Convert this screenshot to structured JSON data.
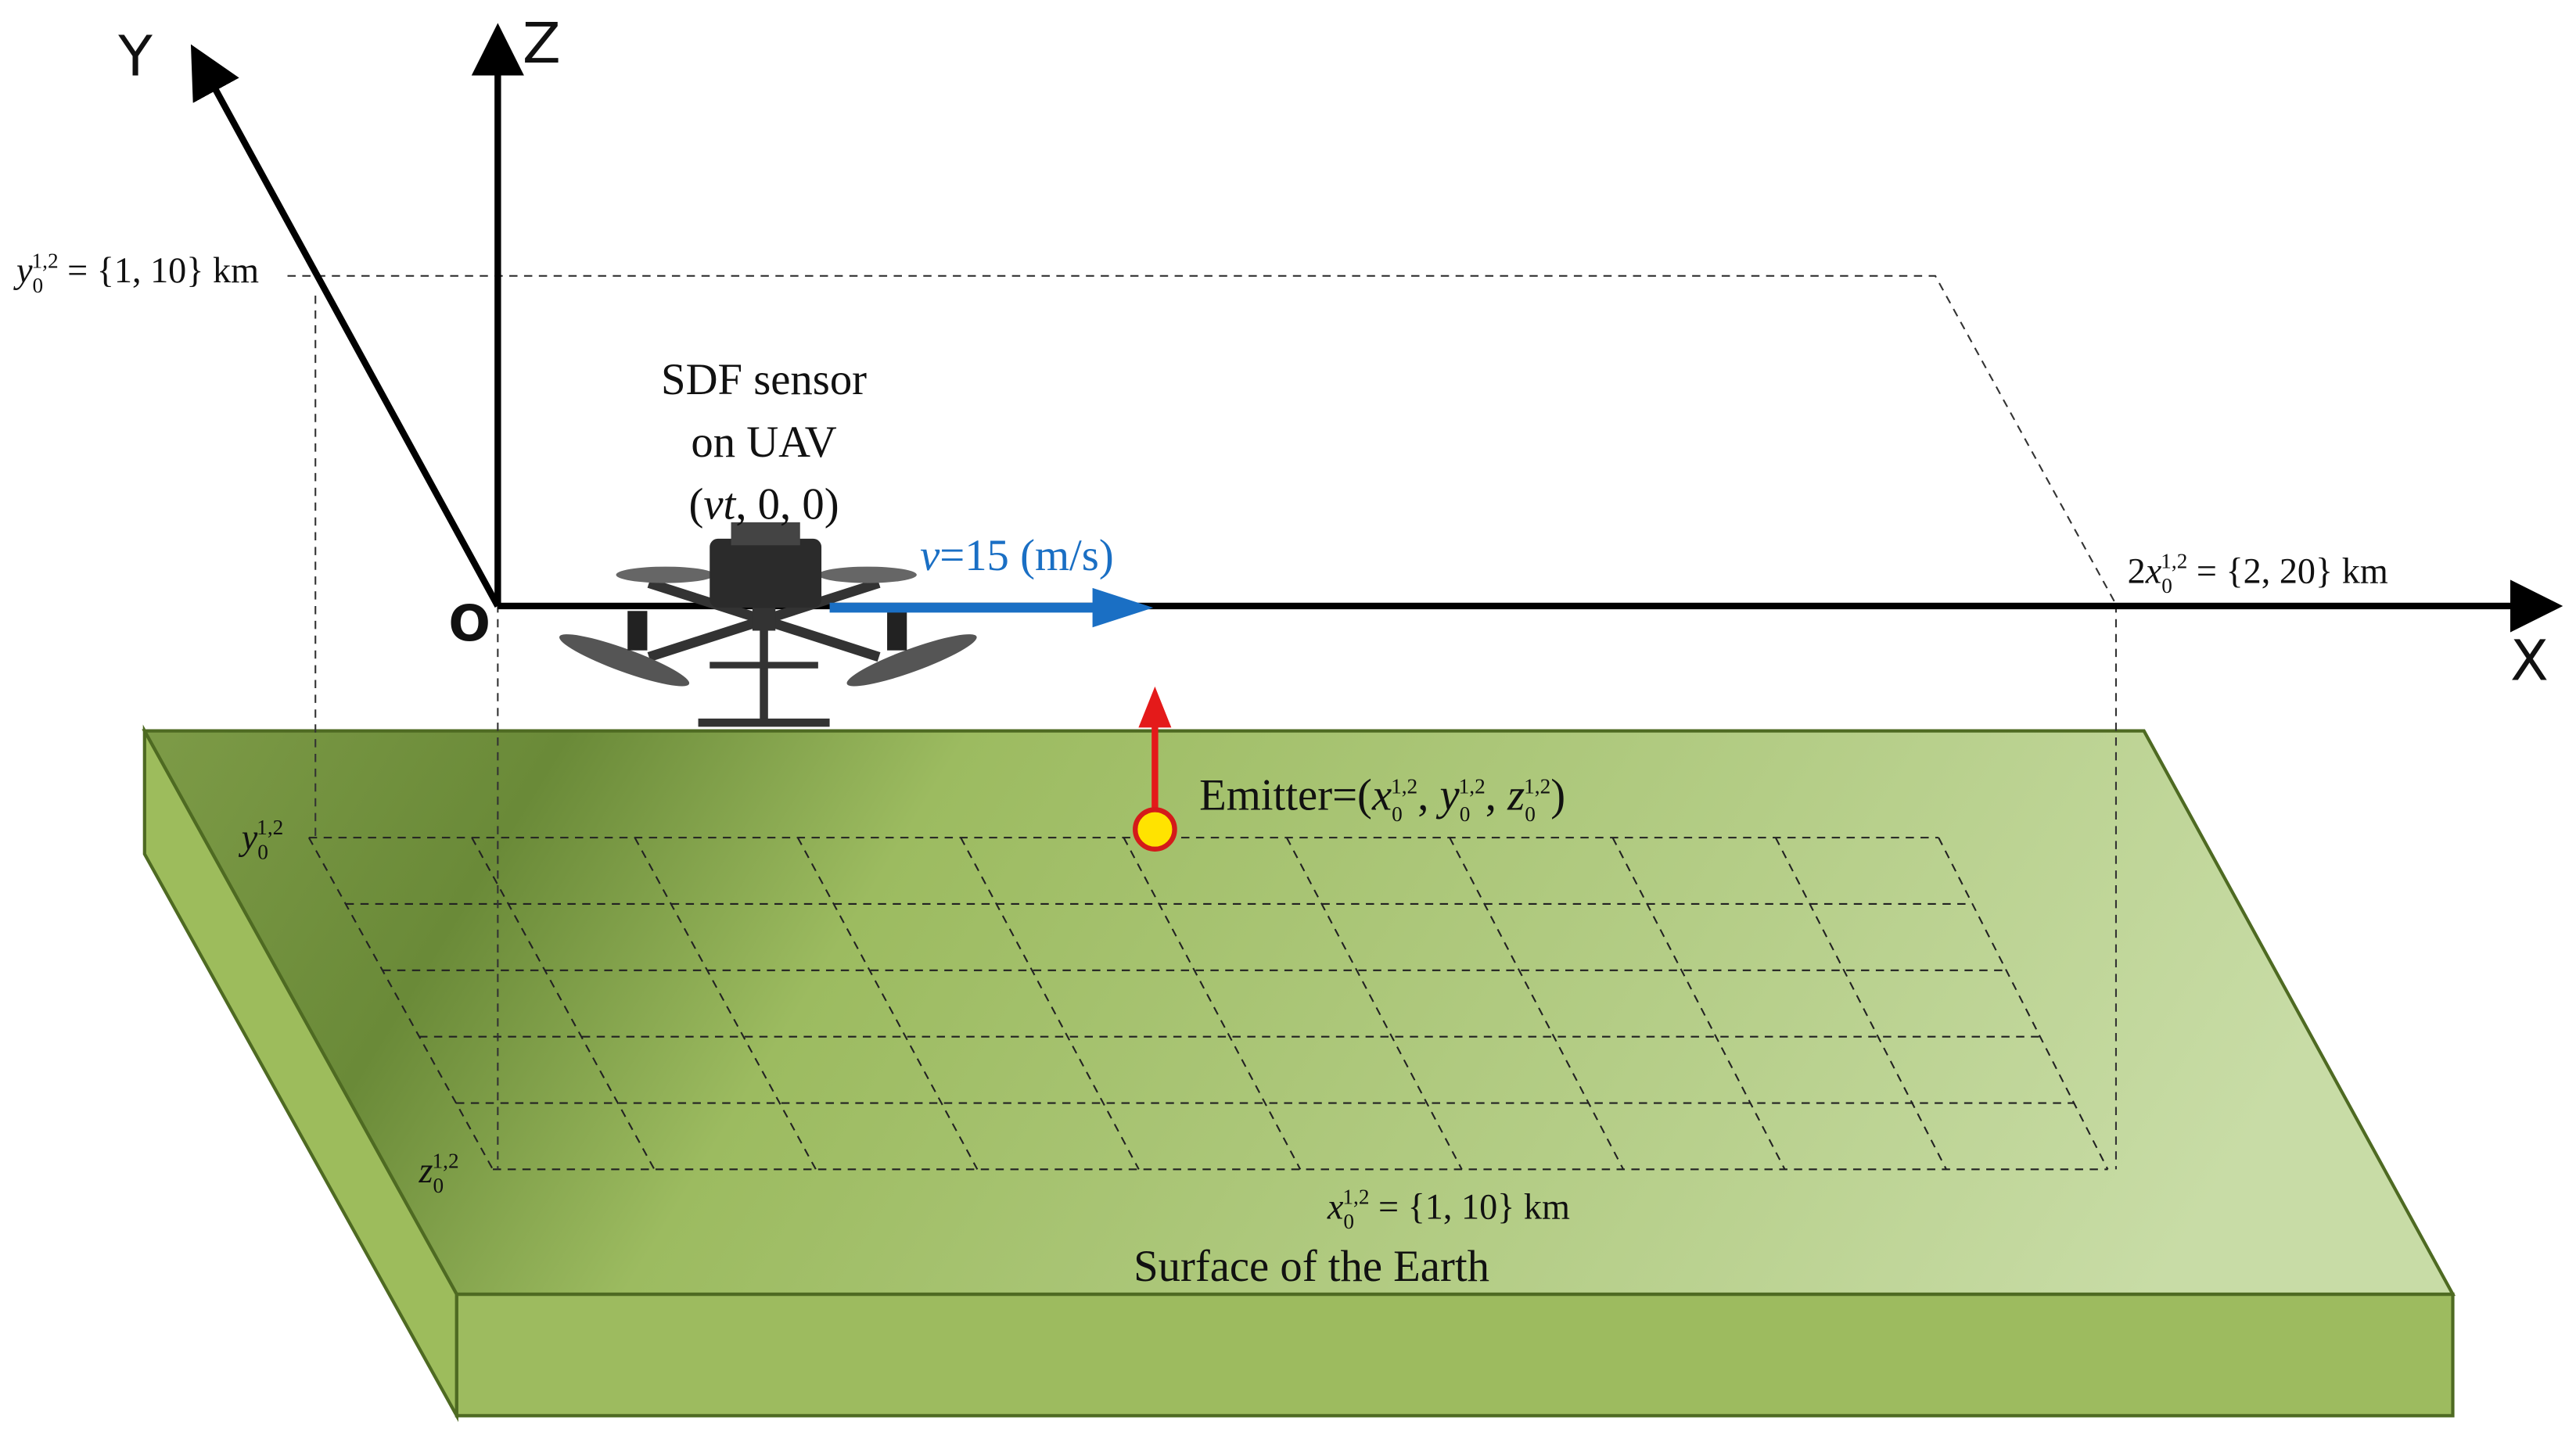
{
  "axes": {
    "x": "X",
    "y": "Y",
    "z": "Z",
    "origin": "O"
  },
  "sensor": {
    "line1": "SDF sensor",
    "line2": "on UAV",
    "position": [
      "(",
      "vt",
      ", 0, 0)"
    ]
  },
  "velocity": [
    "v",
    "=15 (m/s)"
  ],
  "emitter": [
    "Emitter=(",
    "x",
    "0",
    "1,2",
    ", ",
    "y",
    "0",
    "1,2",
    ", ",
    "z",
    "0",
    "1,2",
    ")"
  ],
  "annotations": {
    "y_range": [
      "y",
      "0",
      "1,2",
      " = {1, 10} km"
    ],
    "x_span": [
      "2",
      "x",
      "0",
      "1,2",
      " = {2, 20} km"
    ],
    "x_range": [
      "x",
      "0",
      "1,2",
      " = {1, 10} km"
    ],
    "grid_y": [
      "y",
      "0",
      "1,2"
    ],
    "grid_z": [
      "z",
      "0",
      "1,2"
    ]
  },
  "surface": "Surface of the Earth"
}
